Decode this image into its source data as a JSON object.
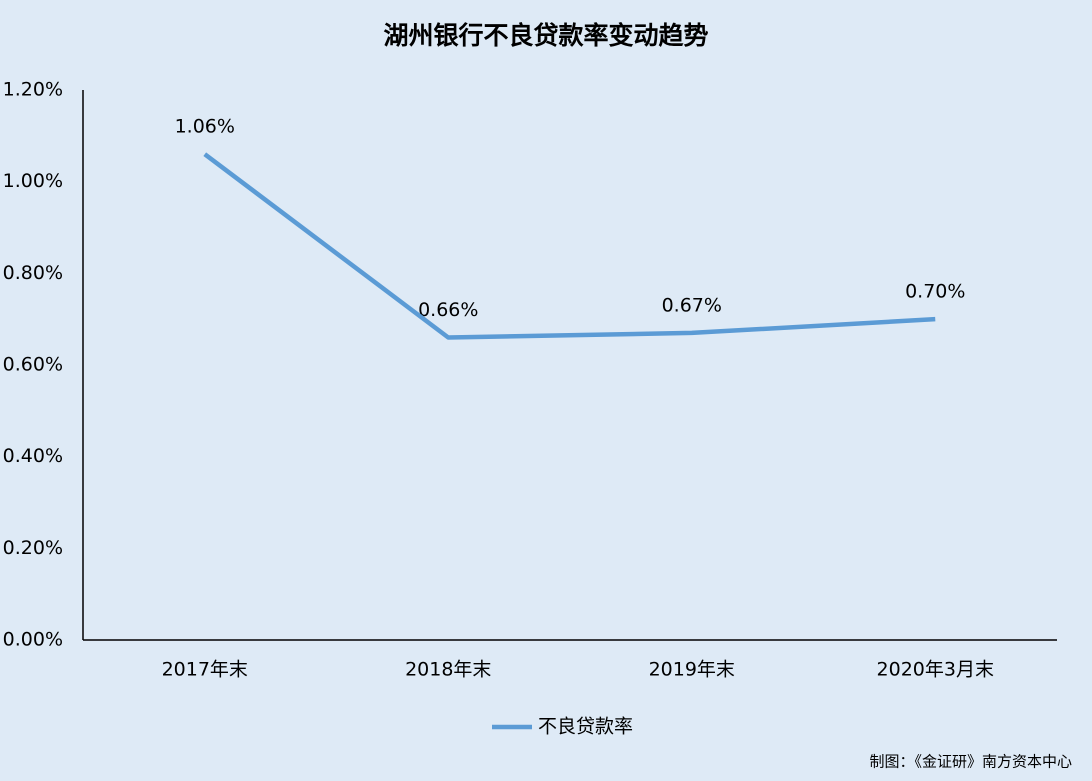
{
  "chart_data": {
    "type": "line",
    "title": "湖州银行不良贷款率变动趋势",
    "categories": [
      "2017年末",
      "2018年末",
      "2019年末",
      "2020年3月末"
    ],
    "series": [
      {
        "name": "不良贷款率",
        "color": "#5b9bd5",
        "values": [
          1.06,
          0.66,
          0.67,
          0.7
        ],
        "value_labels": [
          "1.06%",
          "0.66%",
          "0.67%",
          "0.70%"
        ]
      }
    ],
    "ylim": [
      0,
      1.2
    ],
    "yticks": [
      {
        "value": 0,
        "label": "0.00%"
      },
      {
        "value": 0.2,
        "label": "0.20%"
      },
      {
        "value": 0.4,
        "label": "0.40%"
      },
      {
        "value": 0.6,
        "label": "0.60%"
      },
      {
        "value": 0.8,
        "label": "0.80%"
      },
      {
        "value": 1.0,
        "label": "1.00%"
      },
      {
        "value": 1.2,
        "label": "1.20%"
      }
    ],
    "grid": false,
    "legend": "bottom",
    "source": "制图：《金证研》南方资本中心"
  }
}
